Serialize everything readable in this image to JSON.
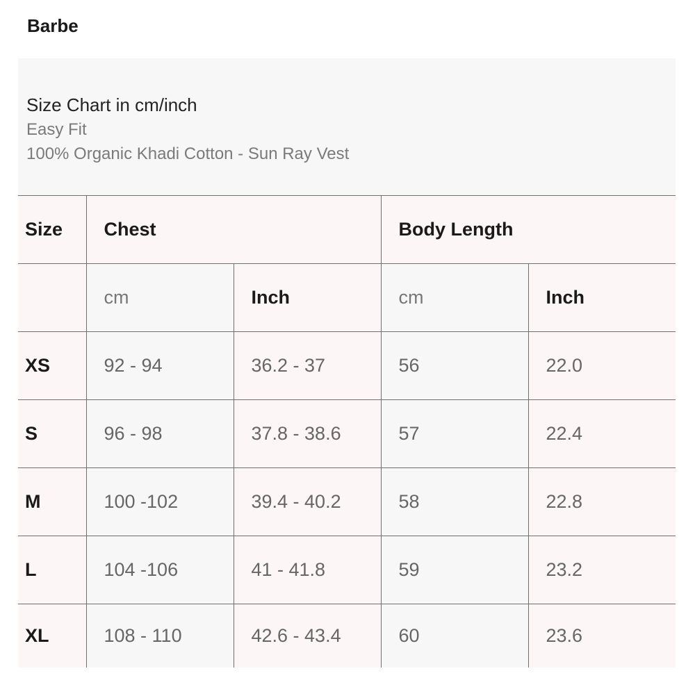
{
  "brand": "Barbe",
  "intro": {
    "title": "Size Chart in cm/inch",
    "fit": "Easy Fit",
    "product": "100% Organic Khadi Cotton - Sun Ray Vest"
  },
  "table": {
    "headers": {
      "size": "Size",
      "chest": "Chest",
      "body_length": "Body Length"
    },
    "subheaders": {
      "chest_cm": "cm",
      "chest_inch": "Inch",
      "body_cm": "cm",
      "body_inch": "Inch"
    },
    "rows": [
      {
        "size": "XS",
        "chest_cm": "92 - 94",
        "chest_inch": "36.2 - 37",
        "body_cm": "56",
        "body_inch": "22.0"
      },
      {
        "size": "S",
        "chest_cm": "96 - 98",
        "chest_inch": "37.8 - 38.6",
        "body_cm": "57",
        "body_inch": "22.4"
      },
      {
        "size": "M",
        "chest_cm": "100 -102",
        "chest_inch": "39.4 - 40.2",
        "body_cm": "58",
        "body_inch": "22.8"
      },
      {
        "size": "L",
        "chest_cm": "104 -106",
        "chest_inch": "41 - 41.8",
        "body_cm": "59",
        "body_inch": "23.2"
      },
      {
        "size": "XL",
        "chest_cm": "108 - 110",
        "chest_inch": "42.6 - 43.4",
        "body_cm": "60",
        "body_inch": "23.6"
      }
    ]
  },
  "colors": {
    "cell_pink": "#fcf6f6",
    "cell_gray": "#f6f7f6",
    "border": "#6f6f6f"
  }
}
